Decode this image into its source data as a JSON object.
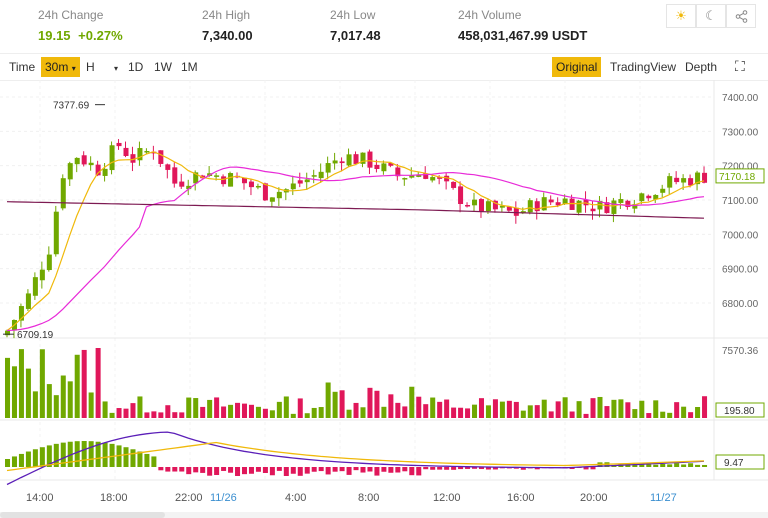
{
  "stats": [
    {
      "label": "24h Change",
      "value": "19.15",
      "extra": "+0.27%"
    },
    {
      "label": "24h High",
      "value": "7,340.00"
    },
    {
      "label": "24h Low",
      "value": "7,017.48"
    },
    {
      "label": "24h Volume",
      "value": "458,031,467.99 USDT"
    }
  ],
  "toolbar": {
    "time": "Time",
    "interval": "30m",
    "h": "H",
    "d1": "1D",
    "w1": "1W",
    "m1": "1M",
    "original": "Original",
    "tradingview": "TradingView",
    "depth": "Depth"
  },
  "price_axis": [
    "7400.00",
    "7300.00",
    "7200.00",
    "7100.00",
    "7000.00",
    "6900.00",
    "6800.00"
  ],
  "current_price": "7170.18",
  "high_marker": "7377.69",
  "low_marker": "6709.19",
  "volume_axis": "7570.36",
  "current_volume": "195.80",
  "macd_value": "9.47",
  "time_axis": [
    "14:00",
    "18:00",
    "22:00",
    "11/26",
    "4:00",
    "8:00",
    "12:00",
    "16:00",
    "20:00",
    "11/27"
  ],
  "colors": {
    "up": "#70a800",
    "down": "#e0175a",
    "accent": "#f0b90b",
    "ma_fast": "#f0b90b",
    "ma_mid": "#e82bd8",
    "ma_slow": "#7d1a52"
  }
}
